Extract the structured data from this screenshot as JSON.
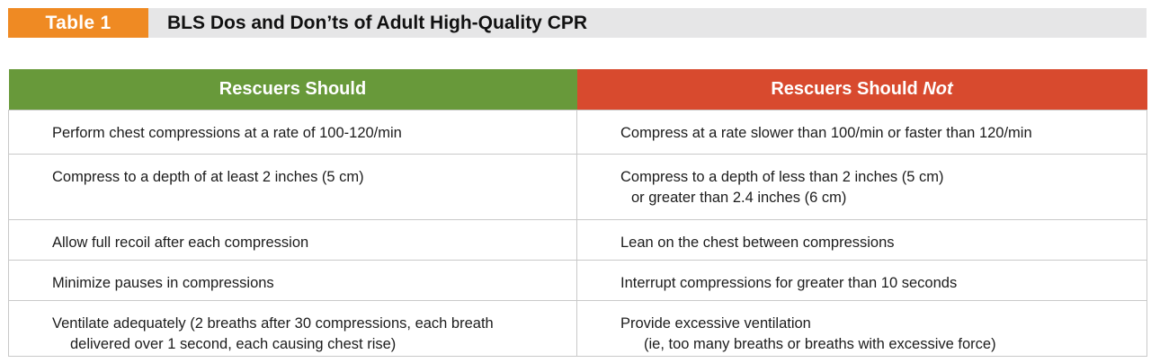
{
  "header": {
    "badge": "Table 1",
    "title": "BLS Dos and Don’ts of Adult High-Quality CPR",
    "badge_color": "#ef8a23",
    "bar_color": "#e6e6e7"
  },
  "table": {
    "columns": {
      "should": {
        "label": "Rescuers Should",
        "color": "#68993a"
      },
      "should_not": {
        "label_prefix": "Rescuers Should ",
        "label_emphasis": "Not",
        "color": "#d84a2e"
      }
    },
    "rows": [
      {
        "should": [
          "Perform chest compressions at a rate of 100-120/min"
        ],
        "should_not": [
          "Compress at a rate slower than 100/min or faster than 120/min"
        ]
      },
      {
        "should": [
          "Compress to a depth of at least 2 inches (5 cm)"
        ],
        "should_not": [
          "Compress to a depth of less than 2 inches (5 cm)",
          "or greater than 2.4 inches (6 cm)"
        ]
      },
      {
        "should": [
          "Allow full recoil after each compression"
        ],
        "should_not": [
          "Lean on the chest between compressions"
        ]
      },
      {
        "should": [
          "Minimize pauses in compressions"
        ],
        "should_not": [
          "Interrupt compressions for greater than 10 seconds"
        ]
      },
      {
        "should": [
          "Ventilate adequately (2 breaths after 30 compressions, each breath",
          "delivered over 1 second, each causing chest rise)"
        ],
        "should_not": [
          "Provide excessive ventilation",
          "(ie, too many breaths or breaths with excessive force)"
        ]
      }
    ]
  }
}
